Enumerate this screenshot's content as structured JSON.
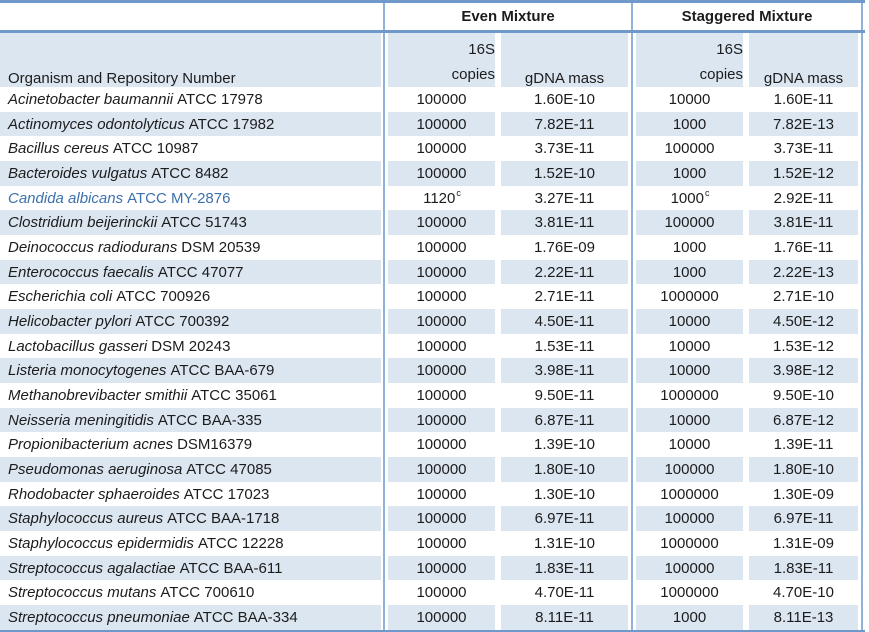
{
  "header": {
    "group_even": "Even Mixture",
    "group_staggered": "Staggered Mixture",
    "col_organism": "Organism and Repository Number",
    "col_16s_line1": "16S",
    "col_16s_line2": "copies",
    "col_gdna_even": "gDNA mass",
    "col_16s_stag_line1": "16S",
    "col_16s_stag_line2": "copies",
    "col_gdna_stag": "gDNA mass"
  },
  "colors": {
    "stripe": "#dce6f1",
    "border_horizontal": "#6f99cb",
    "border_vertical": "#8fb2da",
    "highlight_text": "#3d70ac",
    "body_text": "#1c1c1c"
  },
  "table": {
    "rows": [
      {
        "name": "Acinetobacter baumannii",
        "repo": "ATCC 17978",
        "even_copies": "100000",
        "even_mass": "1.60E-10",
        "stag_copies": "10000",
        "stag_mass": "1.60E-11"
      },
      {
        "name": "Actinomyces odontolyticus",
        "repo": "ATCC 17982",
        "even_copies": "100000",
        "even_mass": "7.82E-11",
        "stag_copies": "1000",
        "stag_mass": "7.82E-13"
      },
      {
        "name": "Bacillus cereus",
        "repo": "ATCC 10987",
        "even_copies": "100000",
        "even_mass": "3.73E-11",
        "stag_copies": "100000",
        "stag_mass": "3.73E-11"
      },
      {
        "name": "Bacteroides vulgatus",
        "repo": "ATCC 8482",
        "even_copies": "100000",
        "even_mass": "1.52E-10",
        "stag_copies": "1000",
        "stag_mass": "1.52E-12"
      },
      {
        "name": "Candida albicans",
        "repo": "ATCC MY-2876",
        "even_copies": "1120",
        "even_copies_sup": "c",
        "even_mass": "3.27E-11",
        "stag_copies": "1000",
        "stag_copies_sup": "c",
        "stag_mass": "2.92E-11",
        "highlight": true
      },
      {
        "name": "Clostridium beijerinckii",
        "repo": "ATCC 51743",
        "even_copies": "100000",
        "even_mass": "3.81E-11",
        "stag_copies": "100000",
        "stag_mass": "3.81E-11"
      },
      {
        "name": "Deinococcus radiodurans",
        "repo": "DSM 20539",
        "even_copies": "100000",
        "even_mass": "1.76E-09",
        "stag_copies": "1000",
        "stag_mass": "1.76E-11"
      },
      {
        "name": "Enterococcus faecalis",
        "repo": "ATCC 47077",
        "even_copies": "100000",
        "even_mass": "2.22E-11",
        "stag_copies": "1000",
        "stag_mass": "2.22E-13"
      },
      {
        "name": "Escherichia coli",
        "repo": "ATCC 700926",
        "even_copies": "100000",
        "even_mass": "2.71E-11",
        "stag_copies": "1000000",
        "stag_mass": "2.71E-10"
      },
      {
        "name": "Helicobacter pylori",
        "repo": "ATCC 700392",
        "even_copies": "100000",
        "even_mass": "4.50E-11",
        "stag_copies": "10000",
        "stag_mass": "4.50E-12"
      },
      {
        "name": "Lactobacillus gasseri",
        "repo": "DSM 20243",
        "even_copies": "100000",
        "even_mass": "1.53E-11",
        "stag_copies": "10000",
        "stag_mass": "1.53E-12"
      },
      {
        "name": "Listeria monocytogenes",
        "repo": "ATCC BAA-679",
        "even_copies": "100000",
        "even_mass": "3.98E-11",
        "stag_copies": "10000",
        "stag_mass": "3.98E-12"
      },
      {
        "name": "Methanobrevibacter smithii",
        "repo": "ATCC 35061",
        "even_copies": "100000",
        "even_mass": "9.50E-11",
        "stag_copies": "1000000",
        "stag_mass": "9.50E-10"
      },
      {
        "name": "Neisseria meningitidis",
        "repo": "ATCC BAA-335",
        "even_copies": "100000",
        "even_mass": "6.87E-11",
        "stag_copies": "10000",
        "stag_mass": "6.87E-12"
      },
      {
        "name": "Propionibacterium acnes",
        "repo": "DSM16379",
        "even_copies": "100000",
        "even_mass": "1.39E-10",
        "stag_copies": "10000",
        "stag_mass": "1.39E-11"
      },
      {
        "name": "Pseudomonas aeruginosa",
        "repo": "ATCC 47085",
        "even_copies": "100000",
        "even_mass": "1.80E-10",
        "stag_copies": "100000",
        "stag_mass": "1.80E-10"
      },
      {
        "name": "Rhodobacter sphaeroides",
        "repo": "ATCC 17023",
        "even_copies": "100000",
        "even_mass": "1.30E-10",
        "stag_copies": "1000000",
        "stag_mass": "1.30E-09"
      },
      {
        "name": "Staphylococcus aureus",
        "repo": "ATCC BAA-1718",
        "even_copies": "100000",
        "even_mass": "6.97E-11",
        "stag_copies": "100000",
        "stag_mass": "6.97E-11"
      },
      {
        "name": "Staphylococcus epidermidis",
        "repo": "ATCC 12228",
        "even_copies": "100000",
        "even_mass": "1.31E-10",
        "stag_copies": "1000000",
        "stag_mass": "1.31E-09"
      },
      {
        "name": "Streptococcus agalactiae",
        "repo": "ATCC BAA-611",
        "even_copies": "100000",
        "even_mass": "1.83E-11",
        "stag_copies": "100000",
        "stag_mass": "1.83E-11"
      },
      {
        "name": "Streptococcus mutans",
        "repo": "ATCC 700610",
        "even_copies": "100000",
        "even_mass": "4.70E-11",
        "stag_copies": "1000000",
        "stag_mass": "4.70E-10"
      },
      {
        "name": "Streptococcus pneumoniae",
        "repo": "ATCC BAA-334",
        "even_copies": "100000",
        "even_mass": "8.11E-11",
        "stag_copies": "1000",
        "stag_mass": "8.11E-13"
      }
    ]
  }
}
